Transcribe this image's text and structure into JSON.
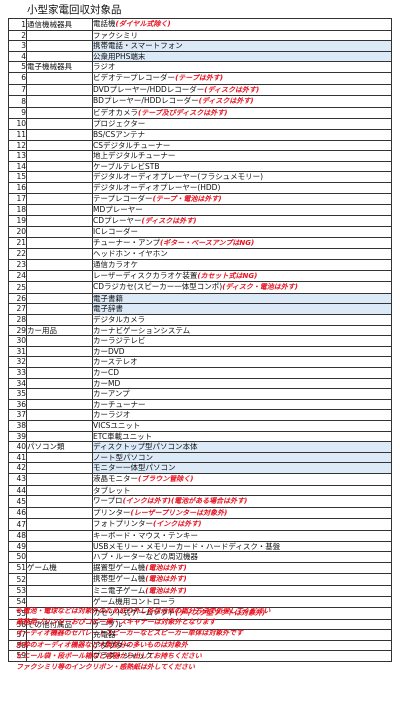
{
  "title": "小型家電回収対象品",
  "rows": [
    {
      "no": "1",
      "cat": "通信機械器具",
      "item": "電話機",
      "note": "(ダイヤル式除く)",
      "hl": false
    },
    {
      "no": "2",
      "cat": "",
      "item": "ファクシミリ",
      "note": "",
      "hl": false
    },
    {
      "no": "3",
      "cat": "",
      "item": "携帯電話・スマートフォン",
      "note": "",
      "hl": true
    },
    {
      "no": "4",
      "cat": "",
      "item": "公衆用PHS端末",
      "note": "",
      "hl": true
    },
    {
      "no": "5",
      "cat": "電子機械器具",
      "item": "ラジオ",
      "note": "",
      "hl": false
    },
    {
      "no": "6",
      "cat": "",
      "item": "ビデオテープレコーダー",
      "note": "(テープは外す)",
      "hl": false
    },
    {
      "no": "7",
      "cat": "",
      "item": "DVDプレーヤー/HDDレコーダー",
      "note": "(ディスクは外す)",
      "hl": false
    },
    {
      "no": "8",
      "cat": "",
      "item": "BDプレーヤー/HDDレコーダー",
      "note": "(ディスクは外す)",
      "hl": false
    },
    {
      "no": "9",
      "cat": "",
      "item": "ビデオカメラ",
      "note": "(テープ及びディスクは外す)",
      "hl": false
    },
    {
      "no": "10",
      "cat": "",
      "item": "プロジェクター",
      "note": "",
      "hl": false
    },
    {
      "no": "11",
      "cat": "",
      "item": "BS/CSアンテナ",
      "note": "",
      "hl": false
    },
    {
      "no": "12",
      "cat": "",
      "item": "CSデジタルチューナー",
      "note": "",
      "hl": false
    },
    {
      "no": "13",
      "cat": "",
      "item": "地上デジタルチューナー",
      "note": "",
      "hl": false
    },
    {
      "no": "14",
      "cat": "",
      "item": "ケーブルテレビSTB",
      "note": "",
      "hl": false
    },
    {
      "no": "15",
      "cat": "",
      "item": "デジタルオーディオプレーヤー(フラシュメモリー)",
      "note": "",
      "hl": false
    },
    {
      "no": "16",
      "cat": "",
      "item": "デジタルオーディオプレーヤー(HDD)",
      "note": "",
      "hl": false
    },
    {
      "no": "17",
      "cat": "",
      "item": "テープレコーダー",
      "note": "(テープ・電池は外す)",
      "hl": false
    },
    {
      "no": "18",
      "cat": "",
      "item": "MDプレーヤー",
      "note": "",
      "hl": false
    },
    {
      "no": "19",
      "cat": "",
      "item": "CDプレーヤー",
      "note": "(ディスクは外す)",
      "hl": false
    },
    {
      "no": "20",
      "cat": "",
      "item": "ICレコーダー",
      "note": "",
      "hl": false
    },
    {
      "no": "21",
      "cat": "",
      "item": "チューナー・アンプ",
      "note": "(ギター・ベースアンプはNG)",
      "hl": false
    },
    {
      "no": "22",
      "cat": "",
      "item": "ヘッドホン・イヤホン",
      "note": "",
      "hl": false
    },
    {
      "no": "23",
      "cat": "",
      "item": "通信カラオケ",
      "note": "",
      "hl": false
    },
    {
      "no": "24",
      "cat": "",
      "item": "レーザーディスクカラオケ装置",
      "note": "(カセット式はNG)",
      "hl": false
    },
    {
      "no": "25",
      "cat": "",
      "item": "CDラジカセ(スピーカー一体型コンポ)",
      "note": "(ディスク・電池は外す)",
      "hl": false
    },
    {
      "no": "26",
      "cat": "",
      "item": "電子書籍",
      "note": "",
      "hl": true
    },
    {
      "no": "27",
      "cat": "",
      "item": "電子辞書",
      "note": "",
      "hl": true
    },
    {
      "no": "28",
      "cat": "",
      "item": "デジタルカメラ",
      "note": "",
      "hl": false
    },
    {
      "no": "29",
      "cat": "カー用品",
      "item": "カーナビゲーションシステム",
      "note": "",
      "hl": false
    },
    {
      "no": "30",
      "cat": "",
      "item": "カーラジテレビ",
      "note": "",
      "hl": false
    },
    {
      "no": "31",
      "cat": "",
      "item": "カーDVD",
      "note": "",
      "hl": false
    },
    {
      "no": "32",
      "cat": "",
      "item": "カーステレオ",
      "note": "",
      "hl": false
    },
    {
      "no": "33",
      "cat": "",
      "item": "カーCD",
      "note": "",
      "hl": false
    },
    {
      "no": "34",
      "cat": "",
      "item": "カーMD",
      "note": "",
      "hl": false
    },
    {
      "no": "35",
      "cat": "",
      "item": "カーアンプ",
      "note": "",
      "hl": false
    },
    {
      "no": "36",
      "cat": "",
      "item": "カーチューナー",
      "note": "",
      "hl": false
    },
    {
      "no": "37",
      "cat": "",
      "item": "カーラジオ",
      "note": "",
      "hl": false
    },
    {
      "no": "38",
      "cat": "",
      "item": "VICSユニット",
      "note": "",
      "hl": false
    },
    {
      "no": "39",
      "cat": "",
      "item": "ETC車載ユニット",
      "note": "",
      "hl": false
    },
    {
      "no": "40",
      "cat": "パソコン類",
      "item": "ディスクトップ型パソコン本体",
      "note": "",
      "hl": true
    },
    {
      "no": "41",
      "cat": "",
      "item": "ノート型パソコン",
      "note": "",
      "hl": true
    },
    {
      "no": "42",
      "cat": "",
      "item": "モニター一体型パソコン",
      "note": "",
      "hl": true
    },
    {
      "no": "43",
      "cat": "",
      "item": "液晶モニター",
      "note": "(ブラウン管除く)",
      "hl": false
    },
    {
      "no": "44",
      "cat": "",
      "item": "タブレット",
      "note": "",
      "hl": false
    },
    {
      "no": "45",
      "cat": "",
      "item": "ワープロ",
      "note": "(インクは外す)(電池がある場合は外す)",
      "hl": false
    },
    {
      "no": "46",
      "cat": "",
      "item": "プリンター",
      "note": "(レーザープリンターは対象外)",
      "hl": false
    },
    {
      "no": "47",
      "cat": "",
      "item": "フォトプリンター",
      "note": "(インクは外す)",
      "hl": false
    },
    {
      "no": "48",
      "cat": "",
      "item": "キーボード・マウス・テンキー",
      "note": "",
      "hl": false
    },
    {
      "no": "49",
      "cat": "",
      "item": "USBメモリー・メモリーカード・ハードディスク・基盤",
      "note": "",
      "hl": false
    },
    {
      "no": "50",
      "cat": "",
      "item": "ハブ・ルーターなどの周辺機器",
      "note": "",
      "hl": false
    },
    {
      "no": "51",
      "cat": "ゲーム機",
      "item": "据置型ゲーム機",
      "note": "(電池は外す)",
      "hl": false
    },
    {
      "no": "52",
      "cat": "",
      "item": "携帯型ゲーム機",
      "note": "(電池は外す)",
      "hl": false
    },
    {
      "no": "53",
      "cat": "",
      "item": "ミニ電子ゲーム",
      "note": "(電池は外す)",
      "hl": false
    },
    {
      "no": "54",
      "cat": "",
      "item": "ゲーム機用コントローラ",
      "note": "",
      "hl": false
    },
    {
      "no": "55",
      "cat": "",
      "item": "カセット式ゲームソフト",
      "note": "(ディスク型ソフトは対象外)",
      "hl": false
    },
    {
      "no": "56",
      "cat": "その他付属品",
      "item": "ケーブル",
      "note": "",
      "hl": false
    },
    {
      "no": "57",
      "cat": "",
      "item": "充電器",
      "note": "",
      "hl": false
    },
    {
      "no": "58",
      "cat": "",
      "item": "アダプター",
      "note": "",
      "hl": false
    },
    {
      "no": "59",
      "cat": "",
      "item": "プラグ・ジャック",
      "note": "",
      "hl": false
    }
  ],
  "footnotes": [
    "※電池・電球などは対象外のため取り外し各自治体の部分方法で処理してください",
    "業務用プリンターおびコピー機・スキャナーは対象外となります",
    "オーディオ機器のセパレートスピーカーなどスピーカー単体は対象外です",
    "木枠のオーディオ機器など木製部分の多いものは対象外",
    "ビニール袋・段ボール箱など容器から出してお持ちください",
    "ファクシミリ等のインクリボン・感熱紙は外してください"
  ]
}
